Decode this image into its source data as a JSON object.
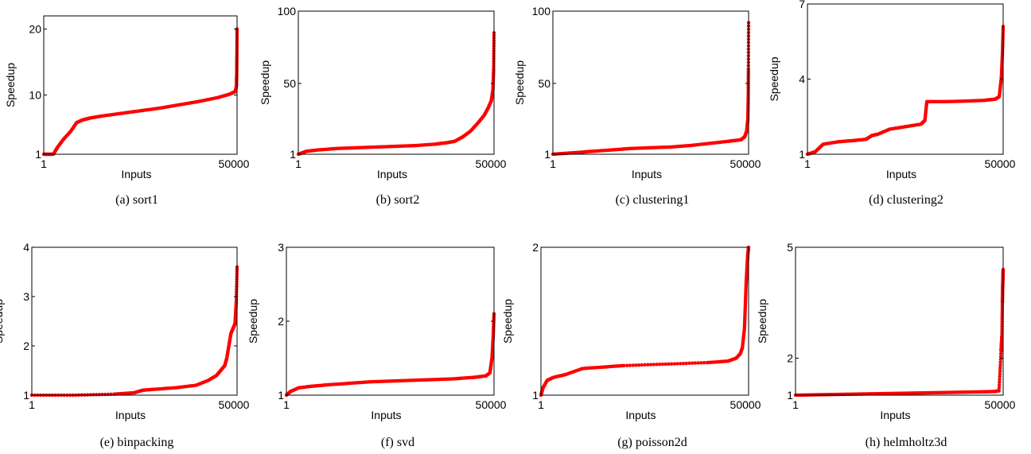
{
  "chart_data": [
    {
      "type": "scatter",
      "caption": "(a) sort1",
      "xlabel": "Inputs",
      "ylabel": "Speedup",
      "xlim": [
        1,
        50000
      ],
      "ylim": [
        1,
        22
      ],
      "xticks": [
        "1",
        "50000"
      ],
      "yticks": [
        {
          "value": 1,
          "label": "1"
        },
        {
          "value": 10,
          "label": "10"
        },
        {
          "value": 20,
          "label": "20"
        }
      ],
      "series_color": "#ff0000",
      "x": [
        1,
        2500,
        3500,
        5000,
        7000,
        8500,
        10000,
        12000,
        15000,
        20000,
        25000,
        30000,
        35000,
        40000,
        45000,
        48000,
        49500,
        49800,
        49900,
        49950,
        50000
      ],
      "y": [
        1.0,
        1.0,
        2.0,
        3.2,
        4.5,
        5.8,
        6.2,
        6.5,
        6.8,
        7.2,
        7.6,
        8.0,
        8.5,
        9.0,
        9.6,
        10.1,
        10.5,
        11.2,
        13.0,
        16.0,
        20.0
      ]
    },
    {
      "type": "scatter",
      "caption": "(b) sort2",
      "xlabel": "Inputs",
      "ylabel": "Speedup",
      "xlim": [
        1,
        50000
      ],
      "ylim": [
        1,
        100
      ],
      "xticks": [
        "1",
        "50000"
      ],
      "yticks": [
        {
          "value": 1,
          "label": "1"
        },
        {
          "value": 50,
          "label": "50"
        },
        {
          "value": 100,
          "label": "100"
        }
      ],
      "series_color": "#ff0000",
      "x": [
        1,
        2000,
        5000,
        10000,
        15000,
        20000,
        25000,
        30000,
        35000,
        38000,
        40000,
        42000,
        44000,
        46000,
        47500,
        48500,
        49300,
        49700,
        49900,
        50000
      ],
      "y": [
        1,
        3,
        4,
        5,
        5.5,
        6,
        6.5,
        7,
        8,
        9,
        10,
        13,
        17,
        23,
        28,
        33,
        38,
        45,
        60,
        85
      ]
    },
    {
      "type": "scatter",
      "caption": "(c) clustering1",
      "xlabel": "Inputs",
      "ylabel": "Speedup",
      "xlim": [
        1,
        50000
      ],
      "ylim": [
        1,
        100
      ],
      "xticks": [
        "1",
        "50000"
      ],
      "yticks": [
        {
          "value": 1,
          "label": "1"
        },
        {
          "value": 50,
          "label": "50"
        },
        {
          "value": 100,
          "label": "100"
        }
      ],
      "series_color": "#ff0000",
      "x": [
        1,
        5000,
        10000,
        15000,
        20000,
        25000,
        30000,
        35000,
        40000,
        45000,
        48000,
        49000,
        49500,
        49800,
        49900,
        49950,
        50000
      ],
      "y": [
        1,
        2,
        3,
        4,
        5,
        5.5,
        6,
        7,
        8.5,
        10,
        11,
        13,
        17,
        25,
        40,
        60,
        92
      ]
    },
    {
      "type": "scatter",
      "caption": "(d) clustering2",
      "xlabel": "Inputs",
      "ylabel": "Speedup",
      "xlim": [
        1,
        50000
      ],
      "ylim": [
        1,
        7
      ],
      "xticks": [
        "1",
        "50000"
      ],
      "yticks": [
        {
          "value": 1,
          "label": "1"
        },
        {
          "value": 4,
          "label": "4"
        },
        {
          "value": 7,
          "label": "7"
        }
      ],
      "series_color": "#ff0000",
      "x": [
        1,
        2000,
        4000,
        8000,
        12000,
        15000,
        16500,
        18000,
        21000,
        25000,
        29000,
        30000,
        30500,
        35000,
        40000,
        45000,
        48000,
        49000,
        49500,
        49800,
        50000
      ],
      "y": [
        1.0,
        1.1,
        1.4,
        1.5,
        1.55,
        1.6,
        1.75,
        1.8,
        2.0,
        2.1,
        2.2,
        2.35,
        3.1,
        3.1,
        3.12,
        3.15,
        3.2,
        3.3,
        4.0,
        5.0,
        6.1
      ]
    },
    {
      "type": "scatter",
      "caption": "(e) binpacking",
      "xlabel": "Inputs",
      "ylabel": "Speedup",
      "xlim": [
        1,
        50000
      ],
      "ylim": [
        1,
        4
      ],
      "xticks": [
        "1",
        "50000"
      ],
      "yticks": [
        {
          "value": 1,
          "label": "1"
        },
        {
          "value": 2,
          "label": "2"
        },
        {
          "value": 3,
          "label": "3"
        },
        {
          "value": 4,
          "label": "4"
        }
      ],
      "series_color": "#ff0000",
      "x": [
        1,
        10000,
        20000,
        25000,
        27000,
        30000,
        35000,
        40000,
        43000,
        45000,
        46000,
        47000,
        47500,
        48000,
        48500,
        49000,
        49500,
        49800,
        50000
      ],
      "y": [
        1.0,
        1.0,
        1.02,
        1.05,
        1.1,
        1.12,
        1.15,
        1.2,
        1.3,
        1.4,
        1.5,
        1.6,
        1.75,
        2.0,
        2.25,
        2.35,
        2.45,
        2.9,
        3.6
      ]
    },
    {
      "type": "scatter",
      "caption": "(f) svd",
      "xlabel": "Inputs",
      "ylabel": "Speedup",
      "xlim": [
        1,
        50000
      ],
      "ylim": [
        1,
        3
      ],
      "xticks": [
        "1",
        "50000"
      ],
      "yticks": [
        {
          "value": 1,
          "label": "1"
        },
        {
          "value": 2,
          "label": "2"
        },
        {
          "value": 3,
          "label": "3"
        }
      ],
      "series_color": "#ff0000",
      "x": [
        1,
        1000,
        3000,
        6000,
        10000,
        15000,
        20000,
        25000,
        30000,
        35000,
        40000,
        45000,
        48000,
        49000,
        49500,
        49800,
        50000
      ],
      "y": [
        1.0,
        1.05,
        1.1,
        1.12,
        1.14,
        1.16,
        1.18,
        1.19,
        1.2,
        1.21,
        1.22,
        1.24,
        1.26,
        1.3,
        1.5,
        1.8,
        2.1
      ]
    },
    {
      "type": "scatter",
      "caption": "(g) poisson2d",
      "xlabel": "Inputs",
      "ylabel": "Speedup",
      "xlim": [
        1,
        50000
      ],
      "ylim": [
        1,
        2
      ],
      "xticks": [
        "1",
        "50000"
      ],
      "yticks": [
        {
          "value": 1,
          "label": "1"
        },
        {
          "value": 2,
          "label": "2"
        }
      ],
      "series_color": "#ff0000",
      "x": [
        1,
        500,
        1500,
        3000,
        6000,
        10000,
        15000,
        20000,
        30000,
        40000,
        45000,
        47000,
        48000,
        48500,
        49000,
        49200,
        49400,
        49600,
        49800,
        50000
      ],
      "y": [
        1.0,
        1.05,
        1.1,
        1.12,
        1.14,
        1.18,
        1.19,
        1.2,
        1.21,
        1.22,
        1.23,
        1.25,
        1.28,
        1.32,
        1.45,
        1.6,
        1.75,
        1.85,
        1.95,
        2.0
      ]
    },
    {
      "type": "scatter",
      "caption": "(h) helmholtz3d",
      "xlabel": "Inputs",
      "ylabel": "Speedup",
      "xlim": [
        1,
        50000
      ],
      "ylim": [
        1,
        5
      ],
      "xticks": [
        "1",
        "50000"
      ],
      "yticks": [
        {
          "value": 1,
          "label": "1"
        },
        {
          "value": 2,
          "label": "2"
        },
        {
          "value": 5,
          "label": "5"
        }
      ],
      "series_color": "#ff0000",
      "x": [
        1,
        5000,
        10000,
        15000,
        20000,
        25000,
        30000,
        35000,
        40000,
        45000,
        48000,
        49000,
        49500,
        49600,
        49700,
        49800,
        49850,
        49900,
        49950,
        50000
      ],
      "y": [
        1.0,
        1.01,
        1.02,
        1.03,
        1.04,
        1.05,
        1.06,
        1.07,
        1.08,
        1.09,
        1.1,
        1.12,
        2.2,
        2.4,
        2.6,
        3.5,
        3.8,
        4.0,
        4.2,
        4.4
      ]
    }
  ]
}
